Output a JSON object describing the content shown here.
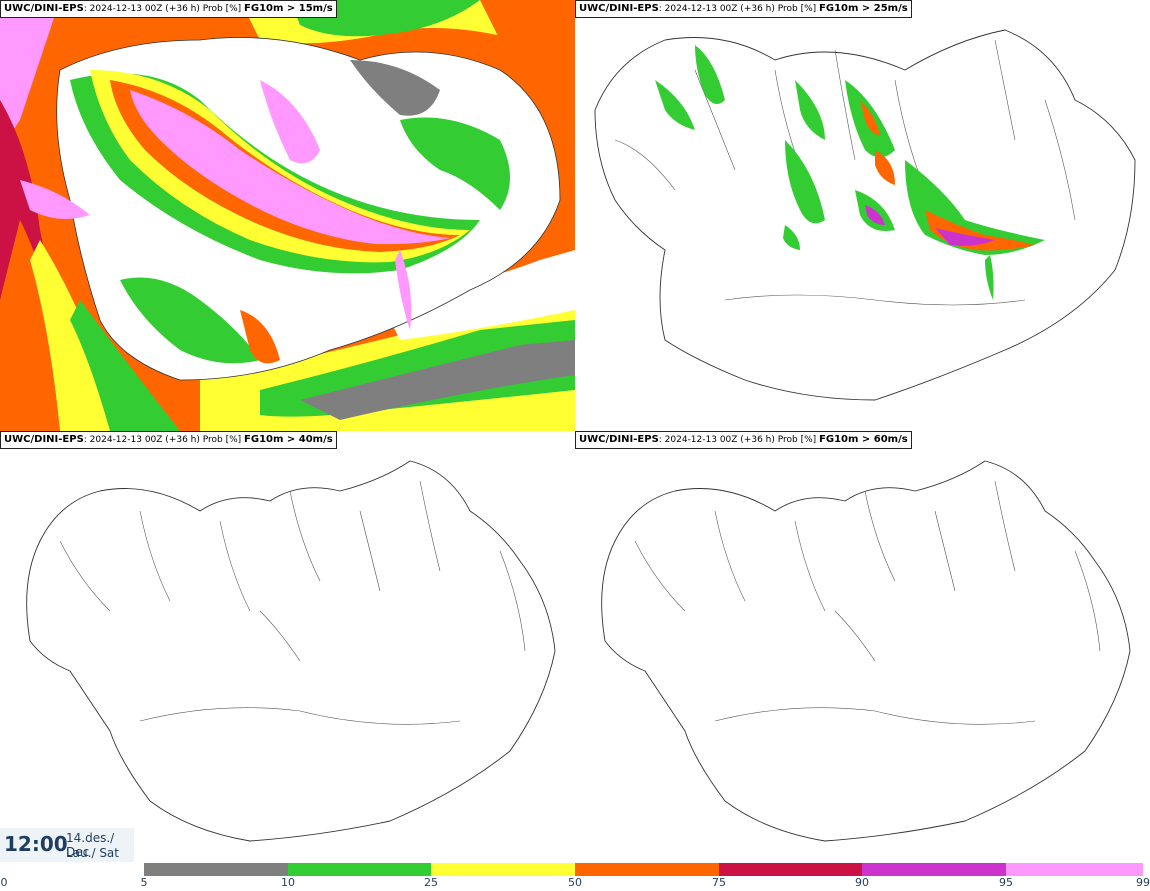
{
  "panels": [
    {
      "model": "UWC/DINI-EPS",
      "meta": ": 2024-12-13 00Z (+36 h) Prob [%] ",
      "threshold": "FG10m > 15m/s"
    },
    {
      "model": "UWC/DINI-EPS",
      "meta": ": 2024-12-13 00Z (+36 h) Prob [%] ",
      "threshold": "FG10m > 25m/s"
    },
    {
      "model": "UWC/DINI-EPS",
      "meta": ": 2024-12-13 00Z (+36 h) Prob [%] ",
      "threshold": "FG10m > 40m/s"
    },
    {
      "model": "UWC/DINI-EPS",
      "meta": ": 2024-12-13 00Z (+36 h) Prob [%] ",
      "threshold": "FG10m > 60m/s"
    }
  ],
  "valid_time": {
    "time": "12:00",
    "date": "14.des./ Dec",
    "weekday": "Lau./ Sat"
  },
  "legend": {
    "ticks": [
      "0",
      "5",
      "10",
      "25",
      "50",
      "75",
      "90",
      "95",
      "99"
    ],
    "colors": [
      "#ffffff",
      "#b3b3b3",
      "#7f7f7f",
      "#33cc33",
      "#ffff33",
      "#ff6600",
      "#cc1144",
      "#cc33cc",
      "#ff99ff"
    ]
  }
}
